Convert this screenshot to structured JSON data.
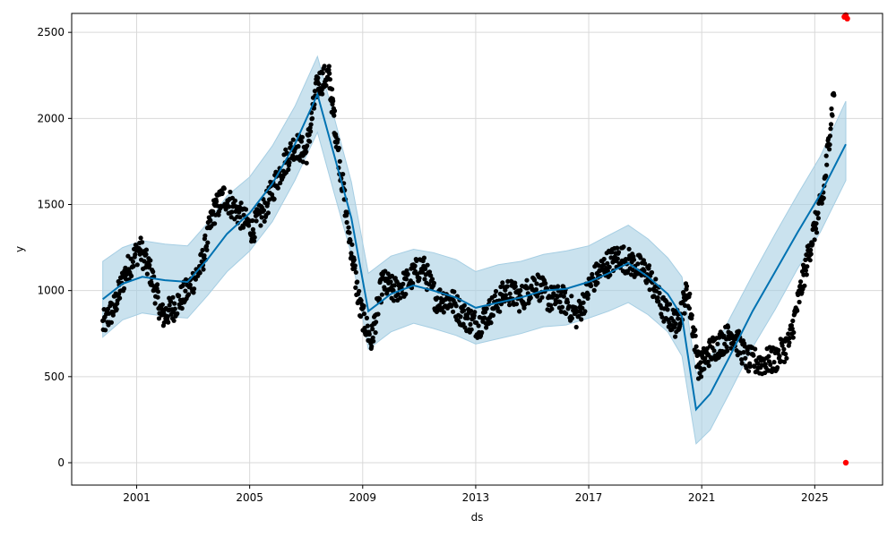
{
  "chart_data": {
    "type": "scatter",
    "xlabel": "ds",
    "ylabel": "y",
    "grid": true,
    "xlim": [
      1998.7,
      2027.4
    ],
    "ylim": [
      -130,
      2610
    ],
    "x_ticks": [
      {
        "value": 2001,
        "label": "2001"
      },
      {
        "value": 2005,
        "label": "2005"
      },
      {
        "value": 2009,
        "label": "2009"
      },
      {
        "value": 2013,
        "label": "2013"
      },
      {
        "value": 2017,
        "label": "2017"
      },
      {
        "value": 2021,
        "label": "2021"
      },
      {
        "value": 2025,
        "label": "2025"
      }
    ],
    "y_ticks": [
      {
        "value": 0,
        "label": "0"
      },
      {
        "value": 500,
        "label": "500"
      },
      {
        "value": 1000,
        "label": "1000"
      },
      {
        "value": 1500,
        "label": "1500"
      },
      {
        "value": 2000,
        "label": "2000"
      },
      {
        "value": 2500,
        "label": "2500"
      }
    ],
    "colors": {
      "observed": "#000000",
      "forecast_line": "#0072B2",
      "uncertainty_band": "#a6cee3",
      "highlight_points": "#ff0000",
      "grid": "#d9d9d9"
    },
    "forecast_trend": {
      "x": [
        1999.8,
        2000.5,
        2001.2,
        2002.0,
        2002.8,
        2003.5,
        2004.2,
        2005.0,
        2005.8,
        2006.6,
        2007.4,
        2008.0,
        2008.6,
        2009.2,
        2010.0,
        2010.8,
        2011.5,
        2012.3,
        2013.0,
        2013.8,
        2014.6,
        2015.4,
        2016.2,
        2017.0,
        2017.7,
        2018.4,
        2019.1,
        2019.8,
        2020.3,
        2020.8,
        2021.3,
        2022.0,
        2022.8,
        2023.6,
        2024.4,
        2025.2,
        2026.1
      ],
      "y": [
        950,
        1040,
        1080,
        1060,
        1050,
        1180,
        1330,
        1450,
        1620,
        1850,
        2140,
        1780,
        1420,
        880,
        980,
        1030,
        1000,
        960,
        900,
        930,
        960,
        1000,
        1010,
        1050,
        1100,
        1160,
        1080,
        980,
        850,
        310,
        400,
        620,
        880,
        1110,
        1340,
        1560,
        1850
      ],
      "lower": [
        730,
        830,
        870,
        850,
        840,
        970,
        1110,
        1230,
        1400,
        1640,
        1920,
        1560,
        1210,
        660,
        760,
        810,
        780,
        740,
        690,
        720,
        750,
        790,
        800,
        840,
        880,
        930,
        860,
        760,
        620,
        110,
        190,
        410,
        670,
        890,
        1130,
        1340,
        1640
      ],
      "upper": [
        1170,
        1250,
        1290,
        1270,
        1260,
        1390,
        1550,
        1660,
        1840,
        2070,
        2360,
        2000,
        1630,
        1100,
        1200,
        1240,
        1220,
        1180,
        1110,
        1150,
        1170,
        1210,
        1230,
        1260,
        1320,
        1380,
        1300,
        1190,
        1080,
        520,
        610,
        840,
        1090,
        1330,
        1560,
        1780,
        2100
      ]
    },
    "observed_segments": {
      "x": [
        1999.8,
        2000.2,
        2000.6,
        2001.1,
        2001.5,
        2001.9,
        2002.3,
        2002.8,
        2003.3,
        2003.7,
        2004.1,
        2004.6,
        2005.1,
        2005.6,
        2006.1,
        2006.6,
        2007.0,
        2007.4,
        2007.8,
        2008.1,
        2008.5,
        2008.9,
        2009.3,
        2009.7,
        2010.1,
        2010.6,
        2011.1,
        2011.6,
        2012.1,
        2012.6,
        2013.1,
        2013.6,
        2014.1,
        2014.6,
        2015.1,
        2015.6,
        2016.1,
        2016.6,
        2017.1,
        2017.6,
        2018.1,
        2018.6,
        2019.1,
        2019.6,
        2020.1,
        2020.5,
        2020.9,
        2021.3,
        2021.7,
        2022.1,
        2022.6,
        2023.1,
        2023.6,
        2024.1,
        2024.5,
        2024.9,
        2025.3,
        2025.7
      ],
      "y": [
        800,
        900,
        1100,
        1250,
        1100,
        850,
        900,
        1000,
        1150,
        1450,
        1550,
        1450,
        1350,
        1500,
        1700,
        1850,
        1800,
        2200,
        2250,
        1850,
        1350,
        900,
        700,
        1050,
        1000,
        1050,
        1150,
        950,
        950,
        850,
        800,
        900,
        1000,
        950,
        1050,
        950,
        950,
        850,
        1050,
        1150,
        1200,
        1150,
        1100,
        900,
        800,
        1000,
        550,
        650,
        700,
        750,
        600,
        580,
        600,
        700,
        1000,
        1300,
        1550,
        2200
      ]
    },
    "highlight_points": {
      "x": [
        2026.1,
        2026.15,
        2026.05,
        2026.1
      ],
      "y": [
        2600,
        2580,
        2590,
        0
      ]
    }
  }
}
